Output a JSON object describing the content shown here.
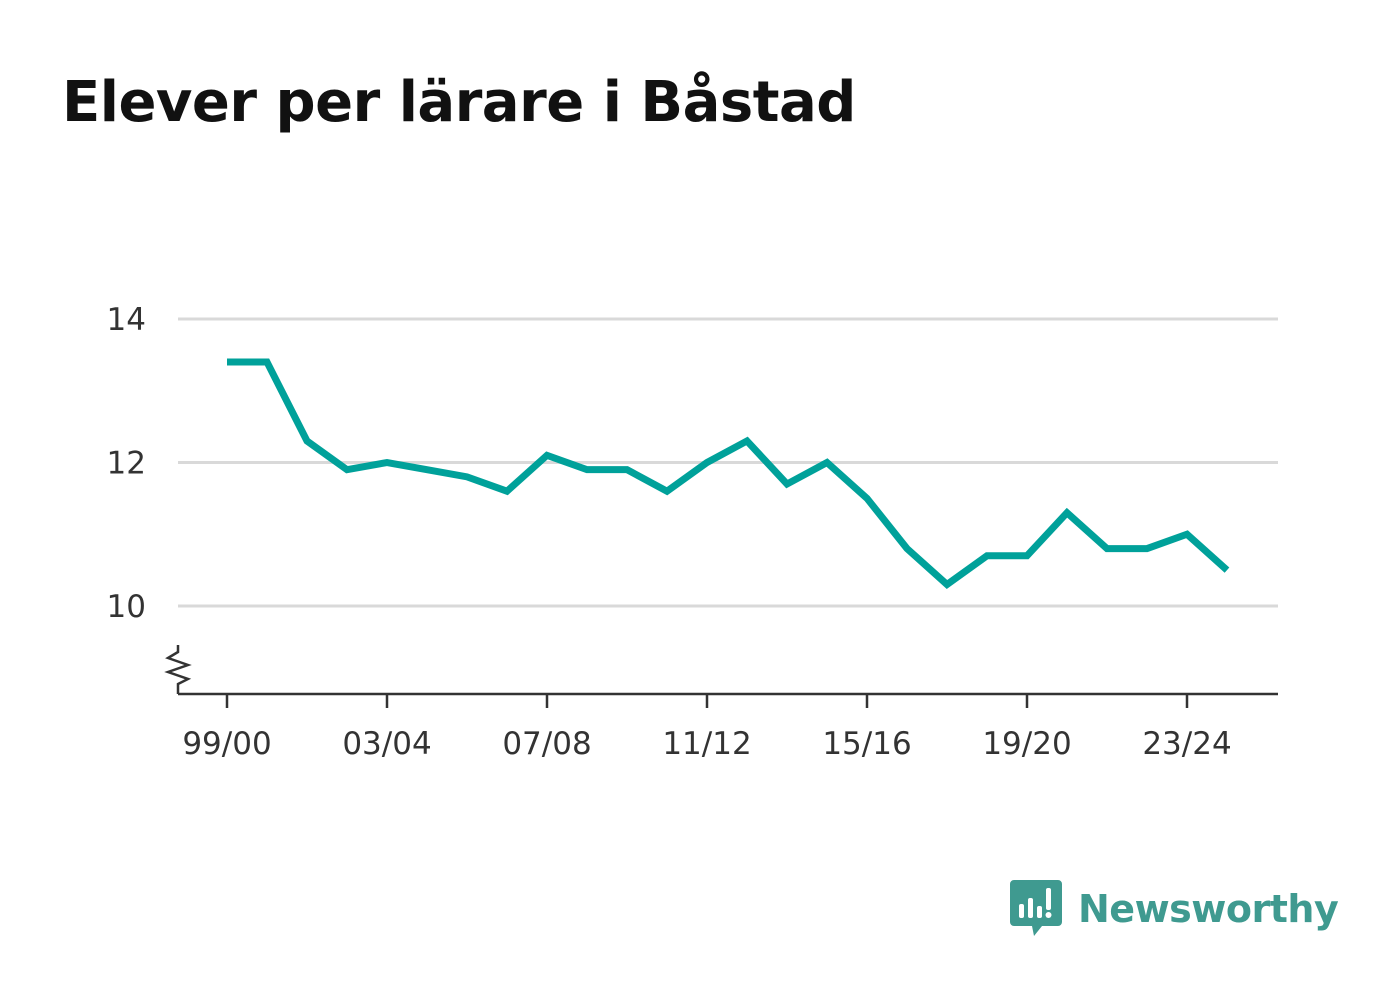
{
  "title": "Elever per lärare i Båstad",
  "brand": {
    "name": "Newsworthy",
    "icon": "newsworthy-logo-icon",
    "color": "#3f9a90"
  },
  "chart_data": {
    "type": "line",
    "title": "Elever per lärare i Båstad",
    "xlabel": "",
    "ylabel": "",
    "categories": [
      "99/00",
      "00/01",
      "01/02",
      "02/03",
      "03/04",
      "04/05",
      "05/06",
      "06/07",
      "07/08",
      "08/09",
      "09/10",
      "10/11",
      "11/12",
      "12/13",
      "13/14",
      "14/15",
      "15/16",
      "16/17",
      "17/18",
      "18/19",
      "19/20",
      "20/21",
      "21/22",
      "22/23",
      "23/24",
      "24/25"
    ],
    "x_tick_labels": [
      "99/00",
      "03/04",
      "07/08",
      "11/12",
      "15/16",
      "19/20",
      "23/24"
    ],
    "series": [
      {
        "values": [
          13.4,
          13.4,
          12.3,
          11.9,
          12.0,
          11.9,
          11.8,
          11.6,
          12.1,
          11.9,
          11.9,
          11.6,
          12.0,
          12.3,
          11.7,
          12.0,
          11.5,
          10.8,
          10.3,
          10.7,
          10.7,
          11.3,
          10.8,
          10.8,
          11.0,
          10.5
        ],
        "color": "#00a19a"
      }
    ],
    "y_ticks": [
      10,
      12,
      14
    ],
    "ylim": [
      8.8,
      14
    ],
    "y_axis_break": true,
    "grid": true,
    "legend": "none"
  }
}
